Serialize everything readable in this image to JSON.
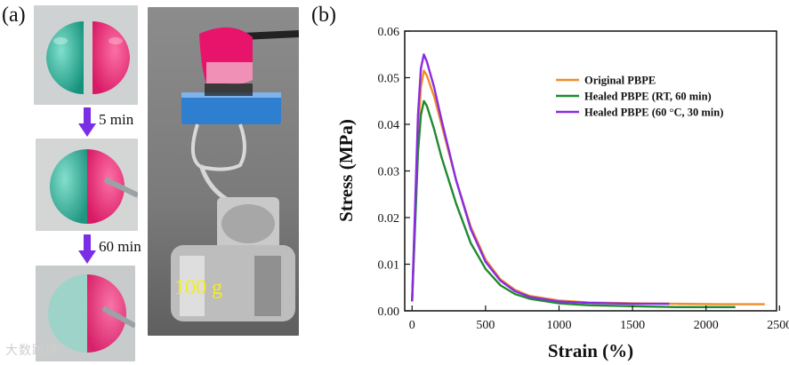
{
  "figure": {
    "label_a": "(a)",
    "label_b": "(b)",
    "step1_time": "5 min",
    "step2_time": "60 min",
    "weight_label": "100 g",
    "watermark": "大数跨境",
    "colors": {
      "teal": "#1fae95",
      "pink": "#e8146b",
      "arrow": "#7a2ee6",
      "clip": "#2f7fd0",
      "weight_text": "#f4ee1e"
    }
  },
  "chart_data": {
    "type": "line",
    "title": "",
    "xlabel": "Strain (%)",
    "ylabel": "Stress (MPa)",
    "xlim": [
      -50,
      2480
    ],
    "ylim": [
      0,
      0.06
    ],
    "xticks": [
      0,
      500,
      1000,
      1500,
      2000,
      2500
    ],
    "xtick_labels": [
      "0",
      "500",
      "1000",
      "1500",
      "2000",
      "2500"
    ],
    "yticks": [
      0.0,
      0.01,
      0.02,
      0.03,
      0.04,
      0.05,
      0.06
    ],
    "ytick_labels": [
      "0.00",
      "0.01",
      "0.02",
      "0.03",
      "0.04",
      "0.05",
      "0.06"
    ],
    "legend_position": "top-right",
    "series": [
      {
        "name": "Original PBPE",
        "color": "#f28c28",
        "x": [
          0,
          20,
          40,
          60,
          80,
          100,
          150,
          200,
          300,
          400,
          500,
          600,
          700,
          800,
          1000,
          1200,
          1500,
          1800,
          2100,
          2400
        ],
        "y": [
          0.002,
          0.02,
          0.038,
          0.048,
          0.0515,
          0.0505,
          0.046,
          0.04,
          0.028,
          0.018,
          0.011,
          0.0068,
          0.0045,
          0.0032,
          0.0022,
          0.0018,
          0.0016,
          0.0015,
          0.0014,
          0.0014
        ]
      },
      {
        "name": "Healed PBPE (RT, 60 min)",
        "color": "#1f8a2e",
        "x": [
          0,
          20,
          40,
          60,
          80,
          100,
          150,
          200,
          300,
          400,
          500,
          600,
          700,
          800,
          1000,
          1200,
          1500,
          1800,
          2000,
          2200
        ],
        "y": [
          0.002,
          0.018,
          0.034,
          0.042,
          0.045,
          0.044,
          0.039,
          0.033,
          0.023,
          0.0145,
          0.009,
          0.0055,
          0.0036,
          0.0026,
          0.0016,
          0.0012,
          0.001,
          0.0008,
          0.0008,
          0.0008
        ]
      },
      {
        "name": "Healed PBPE (60 °C, 30 min)",
        "color": "#8a2be2",
        "x": [
          0,
          20,
          40,
          60,
          80,
          100,
          150,
          200,
          300,
          400,
          500,
          600,
          700,
          800,
          1000,
          1200,
          1500,
          1750
        ],
        "y": [
          0.002,
          0.022,
          0.042,
          0.052,
          0.055,
          0.0535,
          0.048,
          0.041,
          0.028,
          0.0175,
          0.0105,
          0.0065,
          0.0042,
          0.003,
          0.002,
          0.0017,
          0.0015,
          0.0015
        ]
      }
    ]
  }
}
